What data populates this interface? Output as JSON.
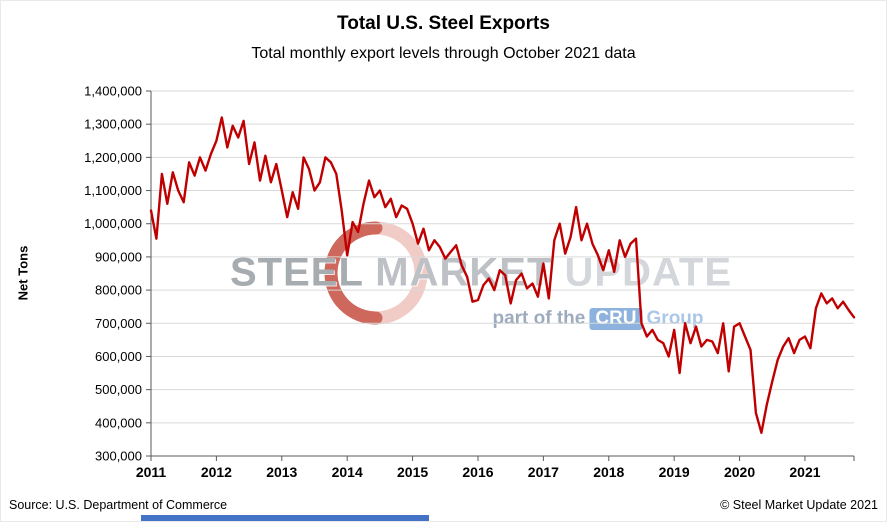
{
  "chart_data": {
    "type": "line",
    "title": "Total U.S. Steel Exports",
    "subtitle": "Total monthly export levels through October 2021 data",
    "ylabel": "Net Tons",
    "xlabel": "",
    "ylim": [
      300000,
      1400000
    ],
    "ytick_step": 100000,
    "grid": "horizontal",
    "legend": "none",
    "x_unit": "month",
    "x_start": "2011-01",
    "x_end": "2021-10",
    "x_tick_labels": [
      "2011",
      "2012",
      "2013",
      "2014",
      "2015",
      "2016",
      "2017",
      "2018",
      "2019",
      "2020",
      "2021"
    ],
    "series": [
      {
        "name": "Total U.S. Steel Exports (Net Tons)",
        "color": "#C00000",
        "values": [
          1040000,
          955000,
          1150000,
          1060000,
          1155000,
          1100000,
          1065000,
          1185000,
          1145000,
          1200000,
          1160000,
          1210000,
          1250000,
          1320000,
          1230000,
          1295000,
          1260000,
          1310000,
          1180000,
          1245000,
          1130000,
          1205000,
          1125000,
          1180000,
          1100000,
          1020000,
          1095000,
          1045000,
          1200000,
          1165000,
          1100000,
          1125000,
          1200000,
          1185000,
          1150000,
          1040000,
          905000,
          1005000,
          975000,
          1060000,
          1130000,
          1080000,
          1100000,
          1050000,
          1075000,
          1020000,
          1055000,
          1045000,
          1000000,
          940000,
          985000,
          920000,
          950000,
          930000,
          895000,
          915000,
          935000,
          875000,
          840000,
          765000,
          770000,
          815000,
          835000,
          800000,
          860000,
          845000,
          760000,
          830000,
          850000,
          805000,
          820000,
          780000,
          880000,
          775000,
          950000,
          1000000,
          910000,
          960000,
          1050000,
          950000,
          1000000,
          940000,
          905000,
          860000,
          920000,
          855000,
          950000,
          900000,
          940000,
          955000,
          700000,
          660000,
          680000,
          650000,
          640000,
          600000,
          680000,
          550000,
          700000,
          640000,
          690000,
          630000,
          650000,
          645000,
          610000,
          700000,
          555000,
          690000,
          700000,
          660000,
          620000,
          430000,
          370000,
          455000,
          525000,
          590000,
          630000,
          655000,
          610000,
          650000,
          660000,
          625000,
          745000,
          790000,
          760000,
          775000,
          745000,
          765000,
          740000,
          718000
        ]
      }
    ]
  },
  "watermark": {
    "steel": "STEEL",
    "market": "MARKET",
    "update": "UPDATE",
    "part_of": "part of the",
    "cru": "CRU",
    "group": "Group"
  },
  "footer": {
    "source": "Source: U.S. Department of Commerce",
    "copyright": "© Steel Market Update 2021"
  },
  "colors": {
    "line": "#C00000",
    "gridline": "#D9D9D9",
    "axis": "#595959",
    "accent_blue": "#4472C4",
    "swoosh_dark": "#C0392B",
    "swoosh_light": "#E9AFA6"
  }
}
